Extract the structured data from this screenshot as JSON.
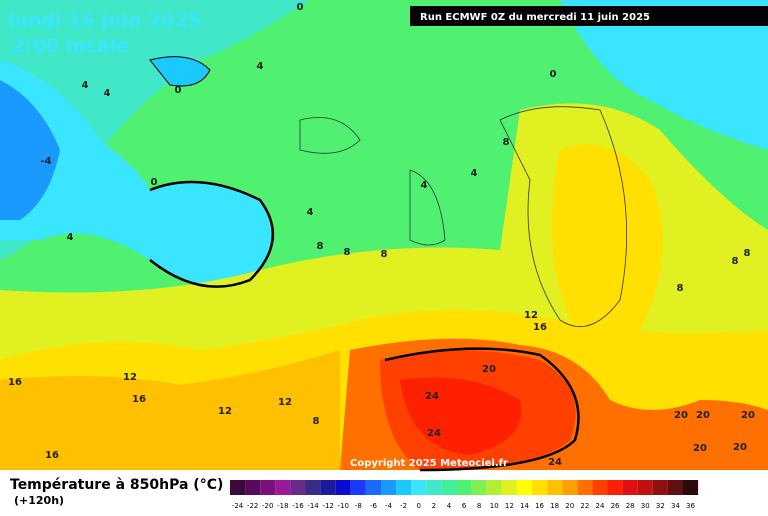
{
  "header": {
    "date": "lundi 16 juin 2025",
    "time": "2:00 locale",
    "run": "Run ECMWF 0Z du mercredi 11 juin 2025"
  },
  "copyright": "Copyright 2025 Meteociel.fr",
  "legend": {
    "title": "Température à 850hPa (°C)",
    "lead": "(+120h)",
    "ticks": [
      -24,
      -22,
      -20,
      -18,
      -16,
      -14,
      -12,
      -10,
      -8,
      -6,
      -4,
      -2,
      0,
      2,
      4,
      6,
      8,
      10,
      12,
      14,
      16,
      18,
      20,
      22,
      24,
      26,
      28,
      30,
      32,
      34,
      36
    ],
    "colors": [
      "#3a0a3a",
      "#5a0a5a",
      "#7a107a",
      "#9a1a9a",
      "#6a2a8a",
      "#3a2a8a",
      "#1a1a9a",
      "#0a0ad0",
      "#1a3aff",
      "#1a6aff",
      "#1a9aff",
      "#1acaff",
      "#3ae6ff",
      "#40e8c8",
      "#40f0a0",
      "#50f070",
      "#80f050",
      "#b0f030",
      "#e0f020",
      "#ffff00",
      "#ffe000",
      "#ffc000",
      "#ffa000",
      "#ff7000",
      "#ff4000",
      "#ff2000",
      "#e01010",
      "#c01010",
      "#901010",
      "#601010",
      "#2a0a0a"
    ]
  },
  "contour_labels": [
    "0",
    "0",
    "0",
    "4",
    "4",
    "4",
    "-4",
    "0",
    "4",
    "4",
    "4",
    "4",
    "8",
    "8",
    "8",
    "8",
    "8",
    "8",
    "8",
    "12",
    "16",
    "20",
    "12",
    "16",
    "16",
    "12",
    "12",
    "8",
    "24",
    "24",
    "16",
    "24",
    "20",
    "20",
    "20",
    "20",
    "20"
  ]
}
